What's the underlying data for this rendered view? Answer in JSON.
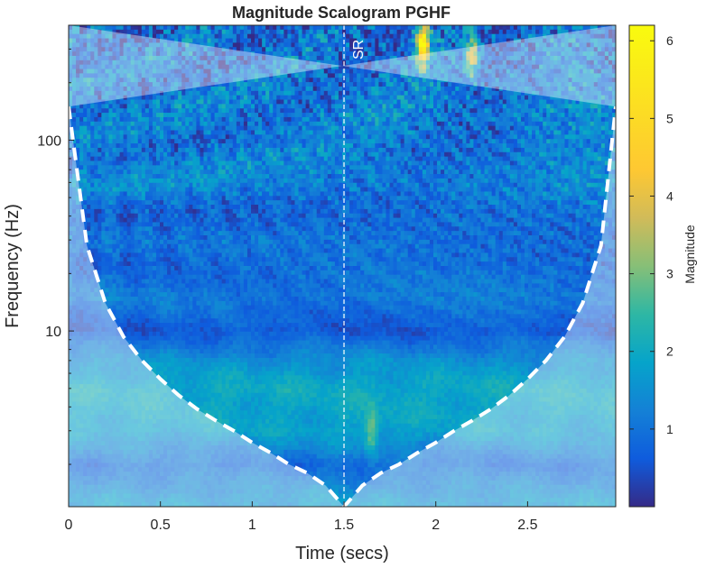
{
  "chart_data": {
    "type": "heatmap",
    "title": "Magnitude Scalogram PGHF",
    "xlabel": "Time (secs)",
    "ylabel": "Frequency (Hz)",
    "xlim": [
      0,
      2.98
    ],
    "ylim": [
      1.2,
      400
    ],
    "yscale": "log",
    "x_ticks": [
      0,
      0.5,
      1,
      1.5,
      2,
      2.5
    ],
    "x_tick_labels": [
      "0",
      "0.5",
      "1",
      "1.5",
      "2",
      "2.5"
    ],
    "y_ticks": [
      10,
      100
    ],
    "y_tick_labels": [
      "10",
      "100"
    ],
    "annotation": {
      "x": 1.5,
      "label": "SR"
    },
    "colorbar": {
      "label": "Magnitude",
      "range": [
        0,
        6.2
      ],
      "ticks": [
        1,
        2,
        3,
        4,
        5,
        6
      ],
      "tick_labels": [
        "1",
        "2",
        "3",
        "4",
        "5",
        "6"
      ],
      "colormap": "parula"
    },
    "cone_of_influence": {
      "x": [
        0,
        0.1,
        0.2,
        0.3,
        0.4,
        0.5,
        0.6,
        0.7,
        0.8,
        0.9,
        1.0,
        1.1,
        1.2,
        1.3,
        1.4,
        1.5,
        1.6,
        1.7,
        1.8,
        1.9,
        2.0,
        2.1,
        2.2,
        2.3,
        2.4,
        2.5,
        2.6,
        2.7,
        2.8,
        2.9,
        2.98
      ],
      "y": [
        150,
        28,
        14,
        9.3,
        7.0,
        5.6,
        4.6,
        3.9,
        3.4,
        3.0,
        2.6,
        2.3,
        2.0,
        1.8,
        1.55,
        1.2,
        1.55,
        1.8,
        2.0,
        2.3,
        2.6,
        3.0,
        3.4,
        3.9,
        4.6,
        5.6,
        7.0,
        9.3,
        14,
        28,
        150
      ]
    },
    "magnitude_profile": {
      "frequency_hz": [
        1.3,
        2,
        3,
        5,
        7,
        10,
        15,
        25,
        40,
        60,
        100,
        150,
        250,
        400
      ],
      "typical_magnitude": [
        1.6,
        0.9,
        1.8,
        2.0,
        1.5,
        0.6,
        1.1,
        0.8,
        0.9,
        1.3,
        1.1,
        1.2,
        1.0,
        0.9
      ]
    },
    "notable_peaks": [
      {
        "time": 1.93,
        "frequency_hz": 320,
        "magnitude": 5.9
      },
      {
        "time": 2.2,
        "frequency_hz": 280,
        "magnitude": 3.8
      },
      {
        "time": 1.65,
        "frequency_hz": 3.0,
        "magnitude": 3.1
      }
    ]
  }
}
